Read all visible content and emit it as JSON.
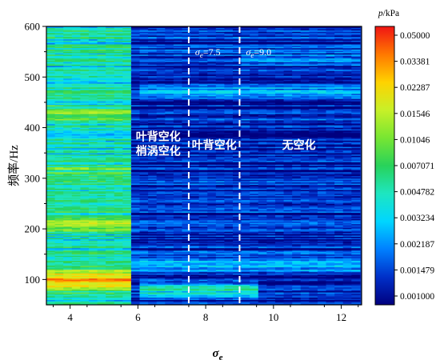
{
  "chart_data": {
    "type": "heatmap",
    "title": "",
    "xlabel": "σ_e",
    "ylabel": "频率/Hz",
    "xlim": [
      3.3,
      12.6
    ],
    "ylim": [
      50,
      600
    ],
    "x_ticks": [
      "4",
      "6",
      "8",
      "10",
      "12"
    ],
    "y_ticks": [
      "100",
      "200",
      "300",
      "400",
      "500",
      "600"
    ],
    "colorbar": {
      "title": "p/kPa",
      "scale": "log",
      "range": [
        0.001,
        0.05
      ],
      "tick_labels": [
        "0.05000",
        "0.03381",
        "0.02287",
        "0.01546",
        "0.01046",
        "0.007071",
        "0.004782",
        "0.003234",
        "0.002187",
        "0.001479",
        "0.001000"
      ]
    },
    "thresholds": [
      {
        "x": 7.5,
        "label_sym": "σ",
        "label_sub": "e",
        "label_val": "=7.5"
      },
      {
        "x": 9.0,
        "label_sym": "σ",
        "label_sub": "e",
        "label_val": "=9.0"
      }
    ],
    "regions": [
      {
        "lines": [
          "叶背空化",
          "梢涡空化"
        ],
        "x": 6.6,
        "y": 375
      },
      {
        "lines": [
          "叶背空化"
        ],
        "x": 8.25,
        "y": 358
      },
      {
        "lines": [
          "无空化"
        ],
        "x": 10.75,
        "y": 358
      }
    ],
    "intensity_model": {
      "base_kPa": 0.0011,
      "zones": [
        {
          "x_range": [
            3.3,
            5.8
          ],
          "mean_kPa": 0.0045,
          "note": "strong broadband band"
        },
        {
          "x_range": [
            5.8,
            12.6
          ],
          "mean_kPa": 0.0013,
          "note": "weak background"
        }
      ],
      "features": [
        {
          "freq": 100,
          "x_range": [
            3.3,
            5.8
          ],
          "peak_kPa": 0.03
        },
        {
          "freq": 210,
          "x_range": [
            3.3,
            5.8
          ],
          "peak_kPa": 0.01
        },
        {
          "freq": 430,
          "x_range": [
            3.3,
            5.8
          ],
          "peak_kPa": 0.009
        },
        {
          "freq": 315,
          "x_range": [
            3.3,
            5.8
          ],
          "peak_kPa": 0.008
        },
        {
          "freq": 475,
          "x_range": [
            6.0,
            12.6
          ],
          "peak_kPa": 0.0022
        },
        {
          "freq": 535,
          "x_range": [
            9.0,
            12.6
          ],
          "peak_kPa": 0.0019
        },
        {
          "freq": 80,
          "x_range": [
            6.0,
            9.5
          ],
          "peak_kPa": 0.004
        },
        {
          "freq": 130,
          "x_range": [
            5.8,
            12.6
          ],
          "peak_kPa": 0.0024
        }
      ]
    }
  }
}
